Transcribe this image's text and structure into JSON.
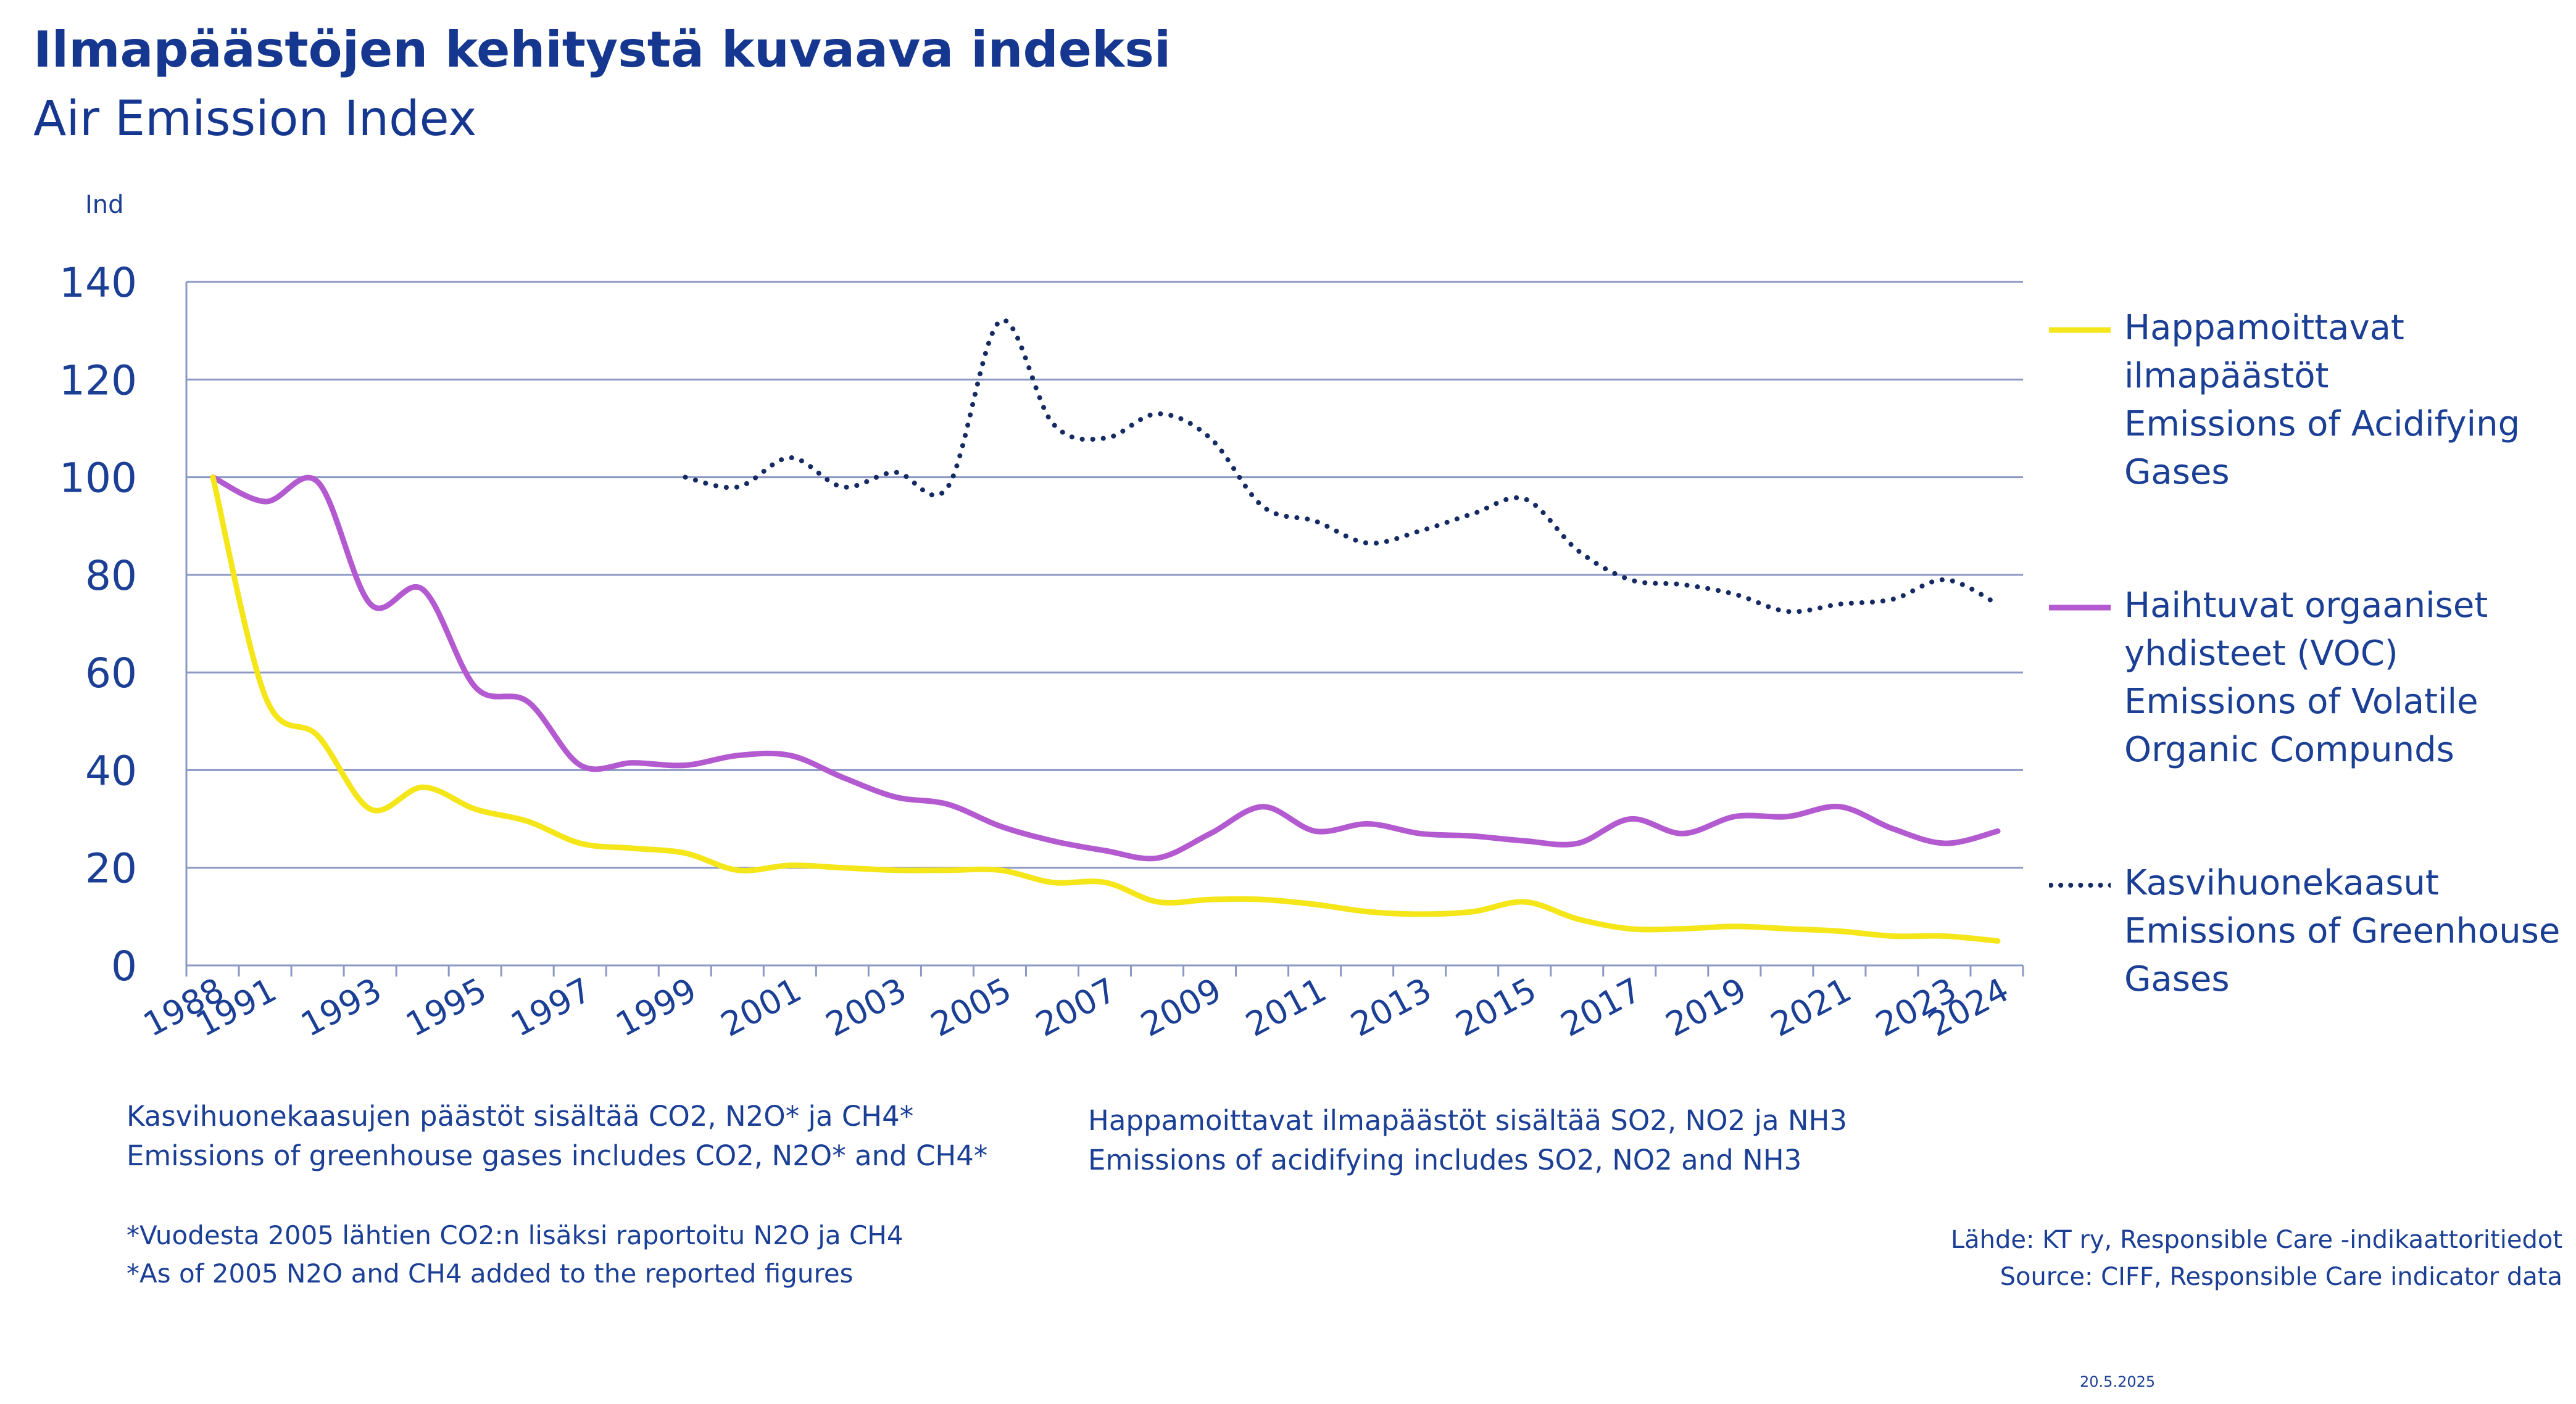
{
  "header": {
    "title": "Ilmapäästöjen kehitystä kuvaava indeksi",
    "subtitle": "Air Emission Index"
  },
  "colors": {
    "text": "#1b3f95",
    "grid": "#8c98c4",
    "acidifying": "#f5e61a",
    "voc": "#b45ad0",
    "greenhouse": "#152a62"
  },
  "chart_data": {
    "type": "line",
    "ylabel": "Ind",
    "ylim": [
      0,
      140
    ],
    "yticks": [
      0,
      20,
      40,
      60,
      80,
      100,
      120,
      140
    ],
    "grid": true,
    "legend_position": "right",
    "x": [
      1988,
      1991,
      1992,
      1993,
      1994,
      1995,
      1996,
      1997,
      1998,
      1999,
      2000,
      2001,
      2002,
      2003,
      2004,
      2005,
      2006,
      2007,
      2008,
      2009,
      2010,
      2011,
      2012,
      2013,
      2014,
      2015,
      2016,
      2017,
      2018,
      2019,
      2020,
      2021,
      2022,
      2023,
      2024
    ],
    "xtick_labels": [
      "1988",
      "1991",
      "1993",
      "1995",
      "1997",
      "1999",
      "2001",
      "2003",
      "2005",
      "2007",
      "2009",
      "2011",
      "2013",
      "2015",
      "2017",
      "2019",
      "2021",
      "2023",
      "2024"
    ],
    "series": [
      {
        "key": "acidifying",
        "line_style": "solid",
        "legend": [
          "Happamoittavat",
          "ilmapäästöt",
          "Emissions of Acidifying",
          "Gases"
        ],
        "values": [
          100,
          55,
          47,
          32,
          36.5,
          32,
          29.5,
          25,
          24,
          23,
          19.5,
          20.5,
          20,
          19.5,
          19.5,
          19.5,
          17,
          17,
          13,
          13.5,
          13.5,
          12.5,
          11,
          10.5,
          11,
          13,
          9.5,
          7.5,
          7.5,
          8,
          7.5,
          7,
          6,
          6,
          5
        ]
      },
      {
        "key": "voc",
        "line_style": "solid",
        "legend": [
          "Haihtuvat orgaaniset",
          "yhdisteet (VOC)",
          "Emissions of Volatile",
          "Organic Compunds"
        ],
        "values": [
          100,
          95,
          99,
          74,
          77,
          57,
          54,
          41,
          41.5,
          41,
          43,
          43,
          38.5,
          34.5,
          33,
          28.5,
          25.5,
          23.5,
          22,
          27,
          32.5,
          27.5,
          29,
          27,
          26.5,
          25.5,
          25,
          30,
          27,
          30.5,
          30.5,
          32.5,
          28,
          25,
          27.5
        ]
      },
      {
        "key": "greenhouse",
        "line_style": "dotted",
        "legend": [
          "Kasvihuonekaasut",
          "Emissions of Greenhouse",
          "Gases"
        ],
        "values": [
          null,
          null,
          null,
          null,
          null,
          null,
          null,
          null,
          null,
          100,
          98,
          104,
          98,
          101,
          98,
          132,
          111,
          108,
          113,
          108,
          94,
          91,
          86.5,
          89,
          92.5,
          95.5,
          85,
          79,
          78,
          76,
          72.5,
          74,
          75,
          79,
          74
        ]
      }
    ]
  },
  "notes": {
    "left": [
      "Kasvihuonekaasujen päästöt sisältää CO2, N2O* ja CH4*",
      "Emissions of greenhouse gases includes CO2, N2O* and CH4*"
    ],
    "right": [
      "Happamoittavat ilmapäästöt sisältää SO2, NO2 ja NH3",
      "Emissions of acidifying includes SO2, NO2 and NH3"
    ],
    "footnote": [
      "*Vuodesta 2005 lähtien CO2:n lisäksi raportoitu N2O ja CH4",
      "*As of 2005 N2O and CH4 added to the reported figures"
    ]
  },
  "source": {
    "lines": [
      "Lähde: KT ry, Responsible Care -indikaattoritiedot",
      "Source: CIFF, Responsible Care indicator data"
    ]
  },
  "date": "20.5.2025"
}
